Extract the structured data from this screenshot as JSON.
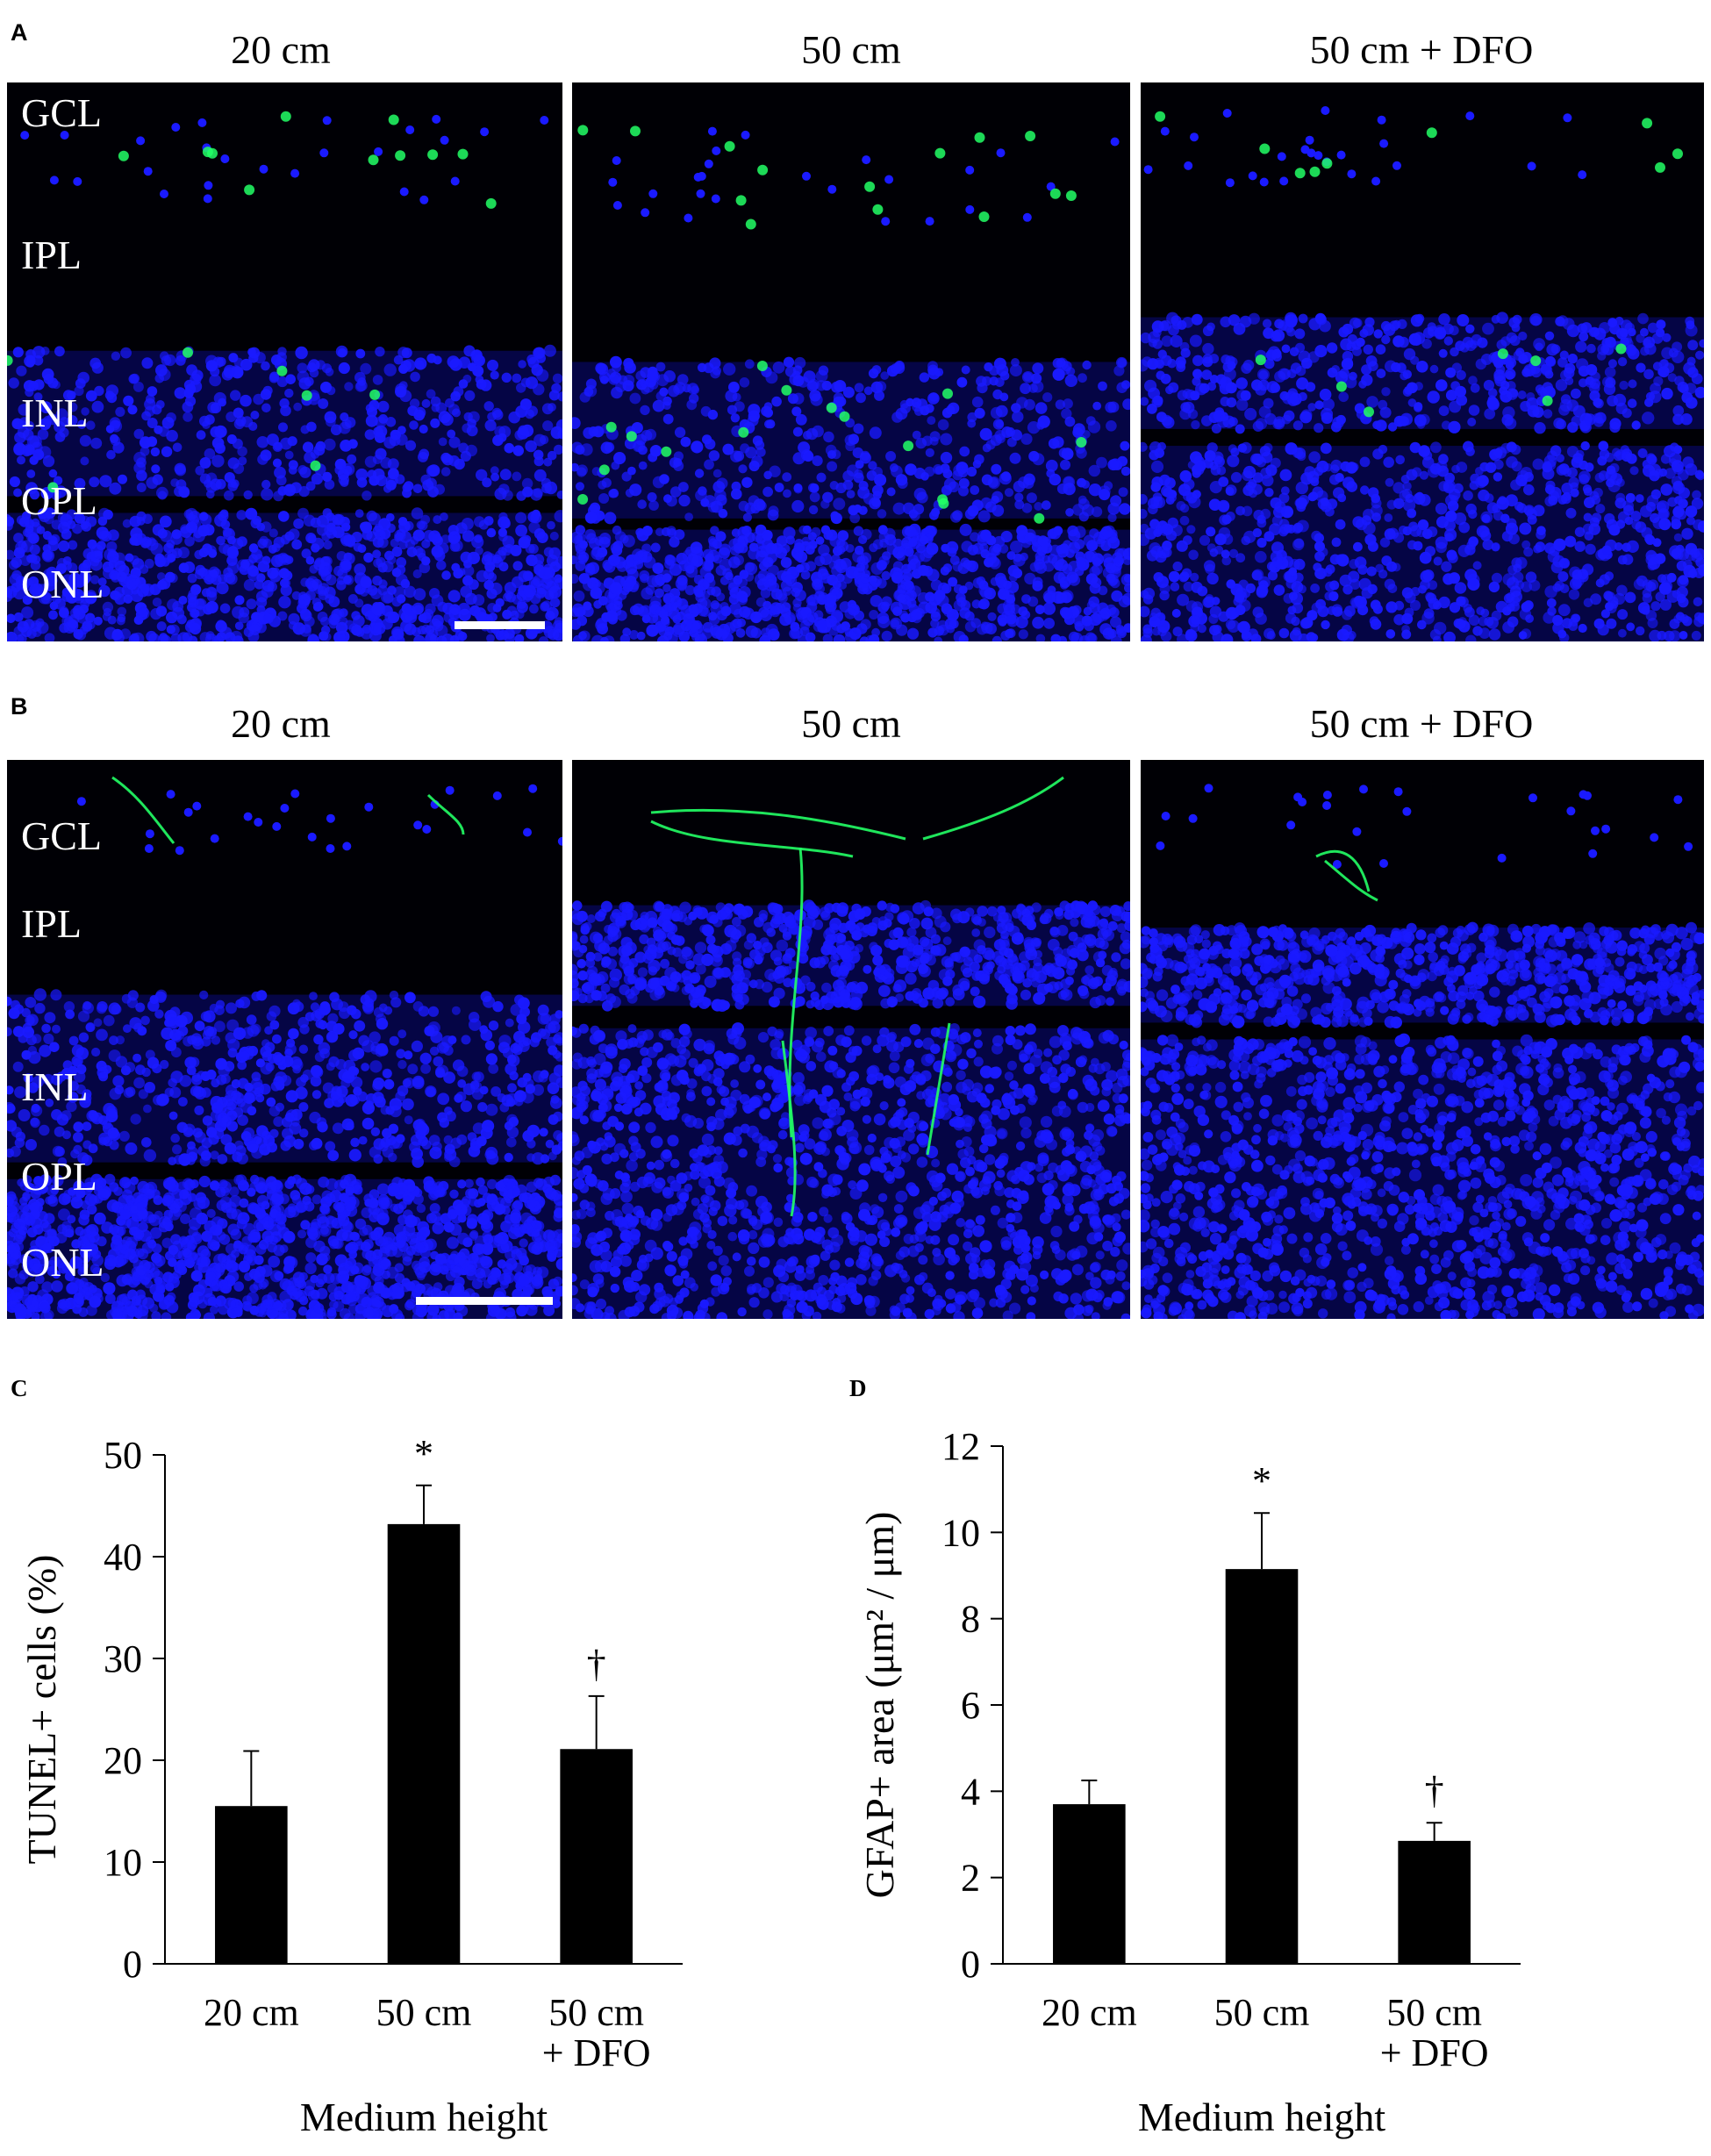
{
  "figure": {
    "panels": {
      "A": {
        "label": "A",
        "columns": [
          "20 cm",
          "50 cm",
          "50 cm + DFO"
        ],
        "layers": [
          "GCL",
          "IPL",
          "INL",
          "OPL",
          "ONL"
        ]
      },
      "B": {
        "label": "B",
        "columns": [
          "20 cm",
          "50 cm",
          "50 cm + DFO"
        ],
        "layers": [
          "GCL",
          "IPL",
          "INL",
          "OPL",
          "ONL"
        ]
      },
      "C": {
        "label": "C"
      },
      "D": {
        "label": "D"
      }
    }
  },
  "colors": {
    "nuclei": "#1a1aff",
    "stain": "#22ff66",
    "background": "#000005",
    "bar": "#000000"
  },
  "chart_data": [
    {
      "id": "C",
      "type": "bar",
      "categories": [
        "20 cm",
        "50 cm",
        "50 cm\n+ DFO"
      ],
      "values": [
        15.5,
        43.2,
        21.1
      ],
      "errors": [
        5.4,
        3.8,
        5.2
      ],
      "markers": [
        "",
        "*",
        "†"
      ],
      "ylabel": "TUNEL+ cells (%)",
      "xlabel": "Medium height",
      "ylim": [
        0,
        50
      ],
      "yticks": [
        0,
        10,
        20,
        30,
        40,
        50
      ],
      "grid": false
    },
    {
      "id": "D",
      "type": "bar",
      "categories": [
        "20 cm",
        "50 cm",
        "50 cm\n+ DFO"
      ],
      "values": [
        3.7,
        9.15,
        2.85
      ],
      "errors": [
        0.55,
        1.3,
        0.42
      ],
      "markers": [
        "",
        "*",
        "†"
      ],
      "ylabel": "GFAP+ area (μm² / μm)",
      "xlabel": "Medium height",
      "ylim": [
        0,
        12
      ],
      "yticks": [
        0,
        2,
        4,
        6,
        8,
        10,
        12
      ],
      "grid": false
    }
  ]
}
